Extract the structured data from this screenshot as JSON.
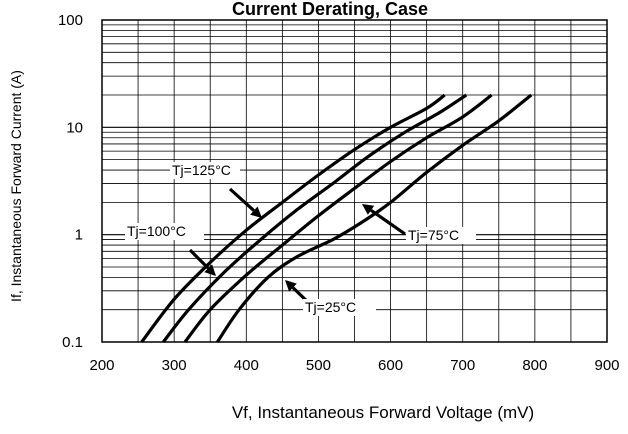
{
  "chart_data": {
    "type": "line",
    "title": "Current Derating, Case",
    "xlabel": "Vf, Instantaneous Forward  Voltage (mV)",
    "ylabel": "If, Instantaneous Forward Current (A)",
    "xlim": [
      200,
      900
    ],
    "ylim": [
      0.1,
      100
    ],
    "yscale": "log",
    "grid": true,
    "x_ticks": [
      "200",
      "300",
      "400",
      "500",
      "600",
      "700",
      "800",
      "900"
    ],
    "y_ticks": [
      "0.1",
      "1",
      "10",
      "100"
    ],
    "series": [
      {
        "name": "Tj=125°C",
        "x": [
          255,
          300,
          350,
          400,
          450,
          500,
          550,
          600,
          650,
          675
        ],
        "y": [
          0.1,
          0.25,
          0.55,
          1.1,
          2.0,
          3.6,
          6.2,
          10.0,
          15.0,
          20.0
        ]
      },
      {
        "name": "Tj=100°C",
        "x": [
          285,
          320,
          370,
          420,
          470,
          520,
          570,
          620,
          670,
          705
        ],
        "y": [
          0.1,
          0.2,
          0.45,
          0.9,
          1.7,
          3.0,
          5.4,
          9.0,
          14.0,
          20.0
        ]
      },
      {
        "name": "Tj=75°C",
        "x": [
          315,
          350,
          400,
          450,
          500,
          550,
          600,
          650,
          700,
          740
        ],
        "y": [
          0.1,
          0.2,
          0.42,
          0.8,
          1.5,
          2.7,
          4.8,
          8.0,
          12.5,
          20.0
        ]
      },
      {
        "name": "Tj=25°C",
        "x": [
          360,
          390,
          430,
          470,
          520,
          560,
          600,
          650,
          700,
          750,
          795
        ],
        "y": [
          0.1,
          0.2,
          0.4,
          0.62,
          0.9,
          1.3,
          2.0,
          3.8,
          6.8,
          11.5,
          20.0
        ]
      }
    ],
    "annotations": [
      "Tj=125°C",
      "Tj=100°C",
      "Tj=75°C",
      "Tj=25°C"
    ]
  }
}
